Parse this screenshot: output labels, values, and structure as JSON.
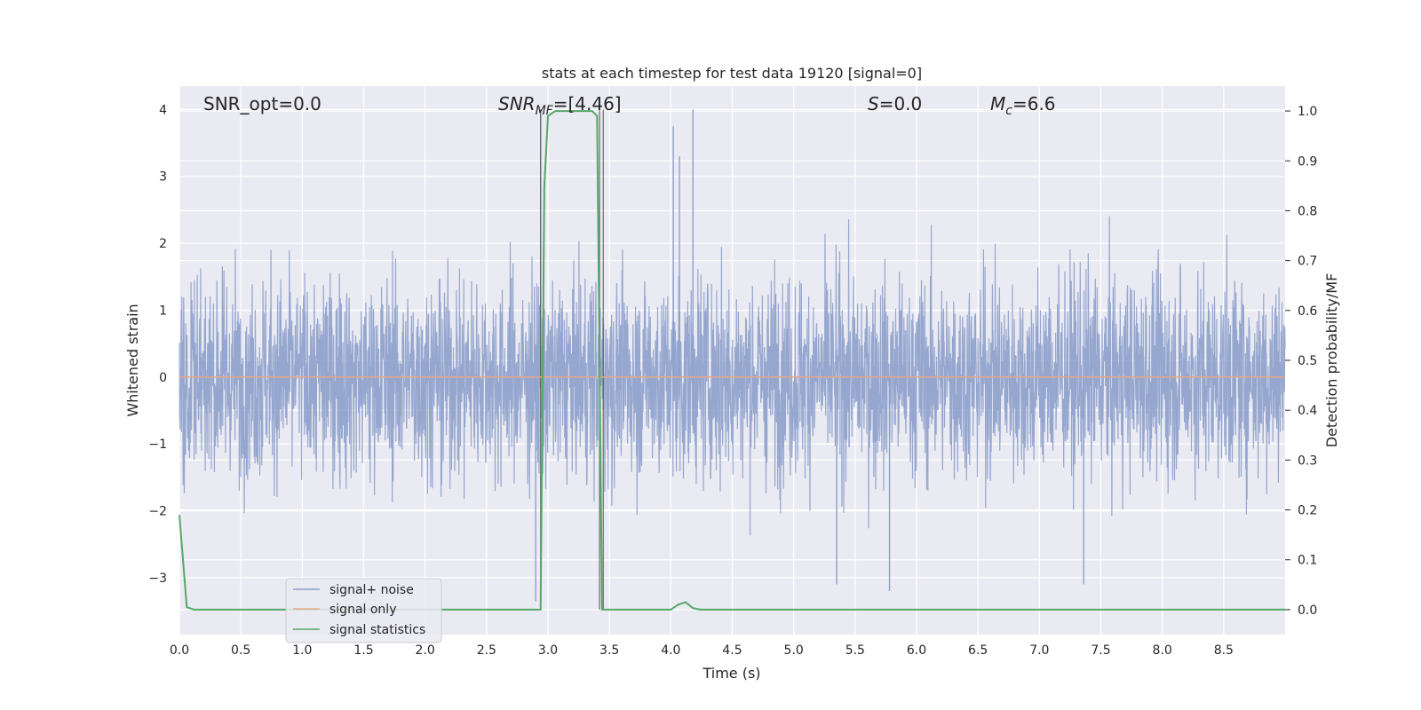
{
  "chart_data": {
    "type": "line",
    "title": "stats at each timestep for test data 19120 [signal=0]",
    "xlabel": "Time (s)",
    "ylabel": "Whitened strain",
    "ylabel_right": "Detection probability/MF",
    "xlim": [
      0.0,
      9.0
    ],
    "ylim": [
      -3.85,
      4.35
    ],
    "ylim_right": [
      -0.05,
      1.05
    ],
    "x_ticks": [
      "0.0",
      "0.5",
      "1.0",
      "1.5",
      "2.0",
      "2.5",
      "3.0",
      "3.5",
      "4.0",
      "4.5",
      "5.0",
      "5.5",
      "6.0",
      "6.5",
      "7.0",
      "7.5",
      "8.0",
      "8.5"
    ],
    "x_tick_values": [
      0.0,
      0.5,
      1.0,
      1.5,
      2.0,
      2.5,
      3.0,
      3.5,
      4.0,
      4.5,
      5.0,
      5.5,
      6.0,
      6.5,
      7.0,
      7.5,
      8.0,
      8.5
    ],
    "y_ticks": [
      "4",
      "3",
      "2",
      "1",
      "0",
      "−1",
      "−2",
      "−3"
    ],
    "y_tick_values": [
      4,
      3,
      2,
      1,
      0,
      -1,
      -2,
      -3
    ],
    "y_ticks_right": [
      "1.0",
      "0.9",
      "0.8",
      "0.7",
      "0.6",
      "0.5",
      "0.4",
      "0.3",
      "0.2",
      "0.1",
      "0.0"
    ],
    "y_tick_values_right": [
      1.0,
      0.9,
      0.8,
      0.7,
      0.6,
      0.5,
      0.4,
      0.3,
      0.2,
      0.1,
      0.0
    ],
    "grid": true,
    "legend_position": "lower-left",
    "annotations": {
      "snr_opt": "SNR_opt=0.0",
      "snr_mf_main": "SNR",
      "snr_mf_sub": "MF",
      "snr_mf_value": "=[4.46]",
      "s_main": "S",
      "s_value": "=0.0",
      "mc_main": "M",
      "mc_sub": "c",
      "mc_value": "=6.6"
    },
    "series": [
      {
        "name": "signal+ noise",
        "axis": "left",
        "color": "#8da0cb",
        "kind": "noise",
        "approx_std": 0.75,
        "range": [
          -3.35,
          4.0
        ],
        "notable_spikes": [
          {
            "x": 2.94,
            "y": 4.0
          },
          {
            "x": 4.02,
            "y": 3.75
          },
          {
            "x": 4.18,
            "y": 4.0
          },
          {
            "x": 4.07,
            "y": 3.3
          },
          {
            "x": 2.9,
            "y": -3.35
          },
          {
            "x": 5.78,
            "y": -3.2
          },
          {
            "x": 7.36,
            "y": -3.1
          },
          {
            "x": 5.35,
            "y": -3.1
          }
        ]
      },
      {
        "name": "signal only",
        "axis": "left",
        "color": "#e5a786",
        "x": [
          0.0,
          9.0
        ],
        "y": [
          0.0,
          0.0
        ]
      },
      {
        "name": "signal statistics",
        "axis": "right",
        "color": "#55a868",
        "x": [
          0.0,
          0.06,
          0.12,
          2.94,
          2.97,
          3.0,
          3.06,
          3.36,
          3.4,
          3.44,
          3.48,
          4.0,
          4.06,
          4.12,
          4.18,
          4.24,
          9.0
        ],
        "y": [
          0.19,
          0.005,
          0.0,
          0.0,
          0.85,
          0.99,
          1.0,
          1.0,
          0.99,
          0.0,
          0.0,
          0.0,
          0.01,
          0.015,
          0.003,
          0.0,
          0.0
        ]
      }
    ]
  }
}
